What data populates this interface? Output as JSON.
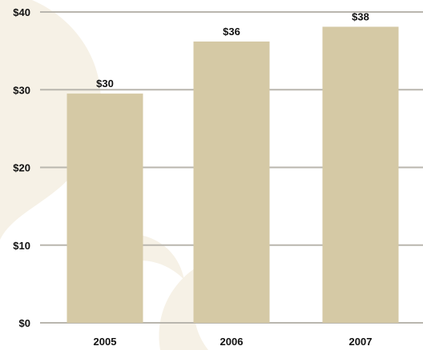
{
  "chart_data": {
    "type": "bar",
    "categories": [
      "2005",
      "2006",
      "2007"
    ],
    "values": [
      29.5,
      36.2,
      38.1
    ],
    "data_labels": [
      "$30",
      "$36",
      "$38"
    ],
    "y_ticks": [
      0,
      10,
      20,
      30,
      40
    ],
    "y_tick_labels": [
      "$0",
      "$10",
      "$20",
      "$30",
      "$40"
    ],
    "ylim": [
      0,
      40
    ],
    "grid": true,
    "legend": "none",
    "title": "",
    "xlabel": "",
    "ylabel": ""
  },
  "colors": {
    "bar": "#d5c9a5",
    "grid": "#b9b6ae",
    "background": "#ffffff",
    "watermark": "#f6f1e6",
    "text": "#111111"
  }
}
